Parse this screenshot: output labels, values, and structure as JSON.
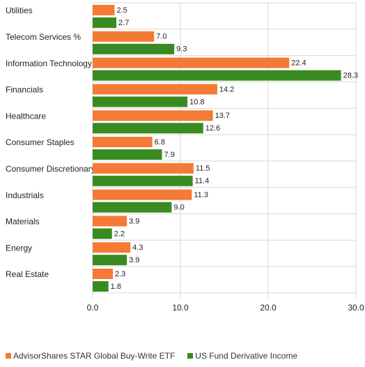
{
  "chart_data": {
    "type": "bar",
    "orientation": "horizontal",
    "categories": [
      "Utilities",
      "Telecom Services %",
      "Information Technology",
      "Financials",
      "Healthcare",
      "Consumer Staples",
      "Consumer Discretionary",
      "Industrials",
      "Materials",
      "Energy",
      "Real Estate"
    ],
    "series": [
      {
        "name": "AdvisorShares STAR Global Buy-Write ETF",
        "color": "#f47a36",
        "values": [
          2.5,
          7.0,
          22.4,
          14.2,
          13.7,
          6.8,
          11.5,
          11.3,
          3.9,
          4.3,
          2.3
        ],
        "labels": [
          "2.5",
          "7.0",
          "22.4",
          "14.2",
          "13.7",
          "6.8",
          "11.5",
          "11.3",
          "3.9",
          "4.3",
          "2.3"
        ]
      },
      {
        "name": "US Fund Derivative Income",
        "color": "#3a8a22",
        "values": [
          2.7,
          9.3,
          28.3,
          10.8,
          12.6,
          7.9,
          11.4,
          9.0,
          2.2,
          3.9,
          1.8
        ],
        "labels": [
          "2.7",
          "9.3",
          "28.3",
          "10.8",
          "12.6",
          "7.9",
          "11.4",
          "9.0",
          "2.2",
          "3.9",
          "1.8"
        ]
      }
    ],
    "xlim": [
      0,
      30
    ],
    "xticks": [
      0,
      10,
      20,
      30
    ],
    "xtick_labels": [
      "0.0",
      "10.0",
      "20.0",
      "30.0"
    ],
    "grid": true,
    "legend_position": "bottom-left"
  }
}
